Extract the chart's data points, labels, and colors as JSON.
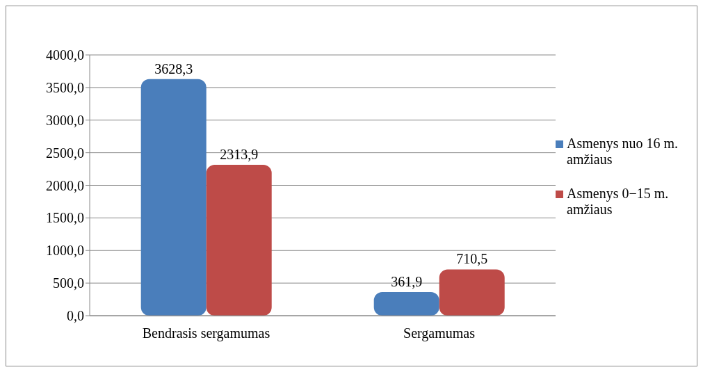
{
  "chart_data": {
    "type": "bar",
    "categories": [
      "Bendrasis sergamumas",
      "Sergamumas"
    ],
    "series": [
      {
        "name": "Asmenys nuo 16 m. amžiaus",
        "color": "#4a7ebb",
        "values": [
          3628.3,
          361.9
        ],
        "value_labels": [
          "3628,3",
          "361,9"
        ]
      },
      {
        "name": "Asmenys 0−15 m. amžiaus",
        "color": "#be4b48",
        "values": [
          2313.9,
          710.5
        ],
        "value_labels": [
          "2313,9",
          "710,5"
        ]
      }
    ],
    "ylim": [
      0,
      4000
    ],
    "yticks": [
      {
        "value": 0,
        "label": "0,0"
      },
      {
        "value": 500,
        "label": "500,0"
      },
      {
        "value": 1000,
        "label": "1000,0"
      },
      {
        "value": 1500,
        "label": "1500,0"
      },
      {
        "value": 2000,
        "label": "2000,0"
      },
      {
        "value": 2500,
        "label": "2500,0"
      },
      {
        "value": 3000,
        "label": "3000,0"
      },
      {
        "value": 3500,
        "label": "3500,0"
      },
      {
        "value": 4000,
        "label": "4000,0"
      }
    ],
    "grid": "y",
    "legend": "right"
  }
}
